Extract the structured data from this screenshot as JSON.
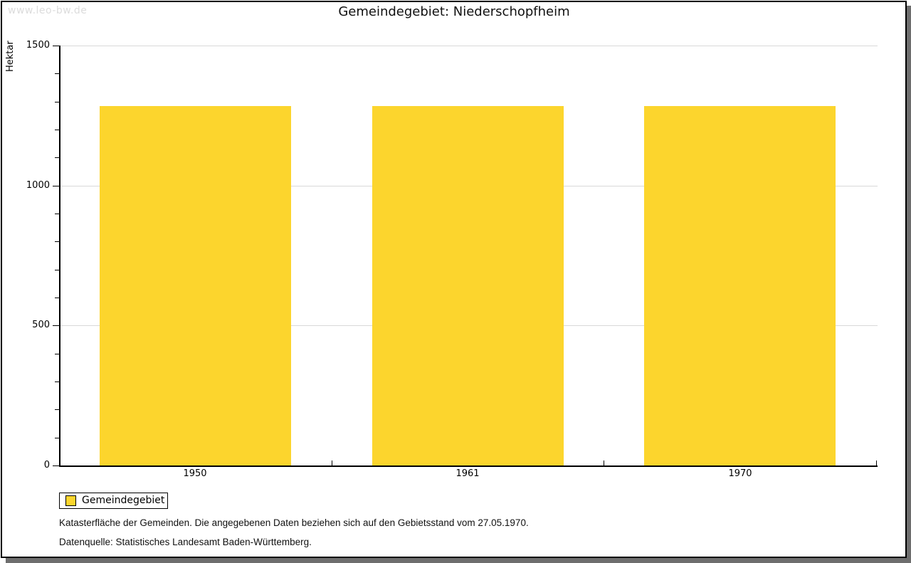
{
  "page": {
    "watermark": "www.leo-bw.de"
  },
  "chart_data": {
    "type": "bar",
    "title": "Gemeindegebiet: Niederschopfheim",
    "categories": [
      "1950",
      "1961",
      "1970"
    ],
    "series": [
      {
        "name": "Gemeindegebiet",
        "values": [
          1285,
          1285,
          1285
        ]
      }
    ],
    "xlabel": "",
    "ylabel": "Hektar",
    "ylim": [
      0,
      1500
    ],
    "ytick_major_step": 500,
    "ytick_minor_step": 100,
    "ytick_labels": [
      "0",
      "500",
      "1000",
      "1500"
    ],
    "grid": true,
    "legend_position": "bottom-left",
    "bar_color": "#FCD52D",
    "gridline_color": "#d8d8d8",
    "axis_color": "#000000"
  },
  "legend": {
    "label": "Gemeindegebiet",
    "swatch_color": "#FCD52D"
  },
  "footer": {
    "line1": "Katasterfläche der Gemeinden. Die angegebenen Daten beziehen sich auf den Gebietsstand vom 27.05.1970.",
    "line2": "Datenquelle: Statistisches Landesamt Baden-Württemberg."
  }
}
